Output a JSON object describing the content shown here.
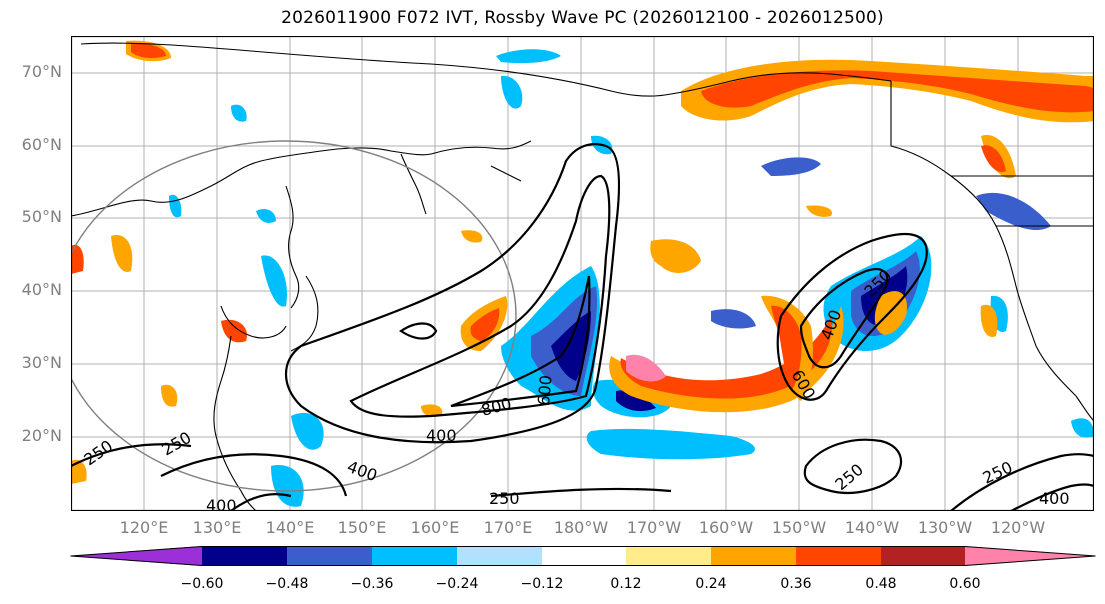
{
  "title": "2026011900 F072 IVT, Rossby Wave PC (2026012100 - 2026012500)",
  "map": {
    "projection": "equirectangular",
    "lon_range": [
      "110°E",
      "115°W"
    ],
    "lat_range": [
      10,
      75
    ],
    "graticule": true,
    "lat_labels": [
      "70°N",
      "60°N",
      "50°N",
      "40°N",
      "30°N",
      "20°N"
    ],
    "lon_labels": [
      "120°E",
      "130°E",
      "140°E",
      "150°E",
      "160°E",
      "170°E",
      "180°W",
      "170°W",
      "160°W",
      "150°W",
      "140°W",
      "130°W",
      "120°W"
    ],
    "contour_labels": [
      "250",
      "250",
      "400",
      "400",
      "400",
      "800",
      "600",
      "600",
      "400",
      "250",
      "250",
      "250",
      "250",
      "400"
    ]
  },
  "colorbar": {
    "ticks": [
      "−0.60",
      "−0.48",
      "−0.36",
      "−0.24",
      "−0.12",
      "0.12",
      "0.24",
      "0.36",
      "0.48",
      "0.60"
    ],
    "colors": [
      "#9b30d9",
      "#00008b",
      "#3a5fcd",
      "#00bfff",
      "#b0e2ff",
      "#ffffff",
      "#ffec8b",
      "#ffa500",
      "#ff4500",
      "#b22222",
      "#ff82ab"
    ]
  }
}
